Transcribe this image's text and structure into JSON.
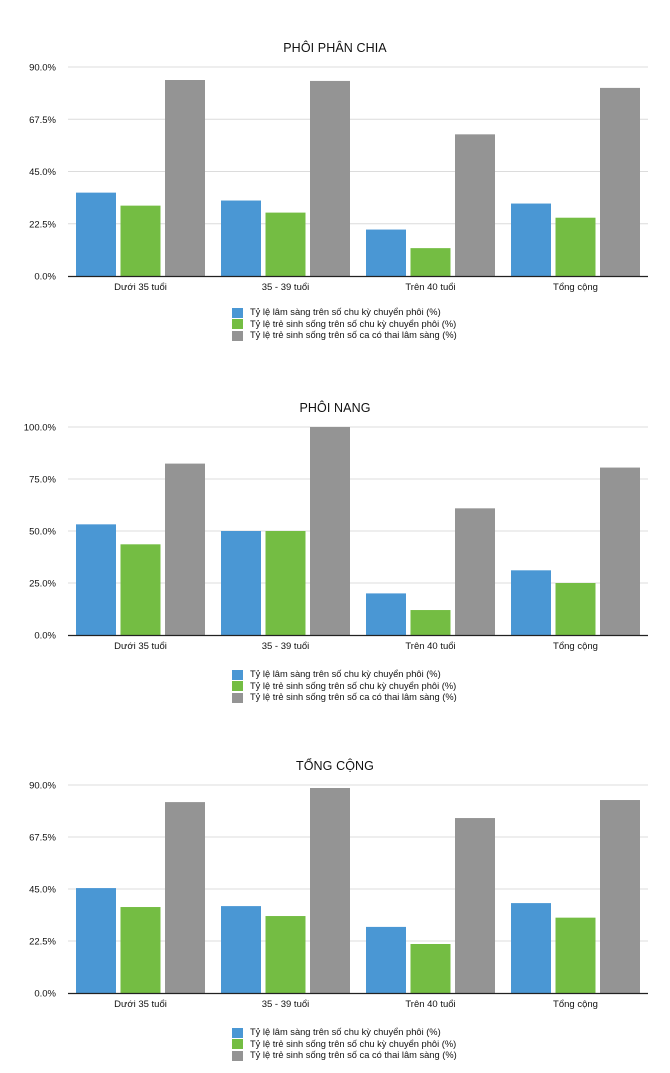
{
  "chart_data": [
    {
      "type": "bar",
      "title": "PHÔI PHÂN CHIA",
      "categories": [
        "Dưới 35 tuổi",
        "35 - 39 tuổi",
        "Trên 40 tuổi",
        "Tổng cộng"
      ],
      "series": [
        {
          "name": "Tỷ lệ lâm sàng trên số chu kỳ chuyển phôi (%)",
          "color": "#4a97d4",
          "values": [
            35.9,
            32.5,
            20.0,
            31.2
          ]
        },
        {
          "name": "Tỷ lệ trẻ sinh sống trên số chu kỳ chuyển phôi (%)",
          "color": "#74bd43",
          "values": [
            30.3,
            27.3,
            12.0,
            25.1
          ]
        },
        {
          "name": "Tỷ lệ trẻ sinh sống trên số ca có thai lâm sàng (%)",
          "color": "#949494",
          "values": [
            84.4,
            84.0,
            61.0,
            81.0
          ]
        }
      ],
      "yticks": [
        "0.0%",
        "22.5%",
        "45.0%",
        "67.5%",
        "90.0%"
      ],
      "ytick_values": [
        0,
        22.5,
        45,
        67.5,
        90
      ],
      "ylim": [
        0,
        90
      ],
      "xlabel": "",
      "ylabel": "",
      "grid": true,
      "legend": "bottom"
    },
    {
      "type": "bar",
      "title": "PHÔI NANG",
      "categories": [
        "Dưới 35 tuổi",
        "35 - 39 tuổi",
        "Trên 40 tuổi",
        "Tổng cộng"
      ],
      "series": [
        {
          "name": "Tỷ lệ lâm sàng trên số chu kỳ chuyển phôi (%)",
          "color": "#4a97d4",
          "values": [
            53.2,
            50.0,
            20.0,
            31.1
          ]
        },
        {
          "name": "Tỷ lệ trẻ sinh sống trên số chu kỳ chuyển phôi (%)",
          "color": "#74bd43",
          "values": [
            43.6,
            50.0,
            12.0,
            25.0
          ]
        },
        {
          "name": "Tỷ lệ trẻ sinh sống trên số ca có thai lâm sàng (%)",
          "color": "#949494",
          "values": [
            82.4,
            100.0,
            60.9,
            80.5
          ]
        }
      ],
      "yticks": [
        "0.0%",
        "25.0%",
        "50.0%",
        "75.0%",
        "100.0%"
      ],
      "ytick_values": [
        0,
        25,
        50,
        75,
        100
      ],
      "ylim": [
        0,
        100
      ],
      "xlabel": "",
      "ylabel": "",
      "grid": true,
      "legend": "bottom"
    },
    {
      "type": "bar",
      "title": "TỔNG CỘNG",
      "categories": [
        "Dưới 35 tuổi",
        "35 - 39 tuổi",
        "Trên 40 tuổi",
        "Tổng cộng"
      ],
      "series": [
        {
          "name": "Tỷ lệ lâm sàng trên số chu kỳ chuyển phôi (%)",
          "color": "#4a97d4",
          "values": [
            45.4,
            37.6,
            28.6,
            38.9
          ]
        },
        {
          "name": "Tỷ lệ trẻ sinh sống trên số chu kỳ chuyển phôi (%)",
          "color": "#74bd43",
          "values": [
            37.2,
            33.3,
            21.2,
            32.6
          ]
        },
        {
          "name": "Tỷ lệ trẻ sinh sống trên số ca có thai lâm sàng (%)",
          "color": "#949494",
          "values": [
            82.6,
            88.7,
            75.7,
            83.5
          ]
        }
      ],
      "yticks": [
        "0.0%",
        "22.5%",
        "45.0%",
        "67.5%",
        "90.0%"
      ],
      "ytick_values": [
        0,
        22.5,
        45,
        67.5,
        90
      ],
      "ylim": [
        0,
        90
      ],
      "xlabel": "",
      "ylabel": "",
      "grid": true,
      "legend": "bottom"
    }
  ]
}
